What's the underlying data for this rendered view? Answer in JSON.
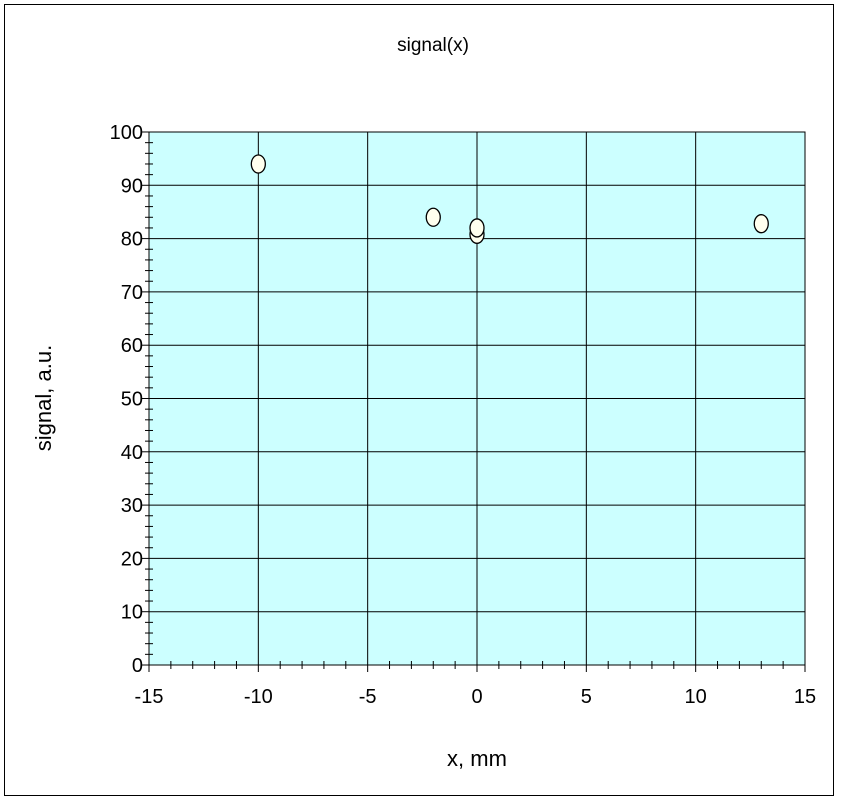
{
  "chart_data": {
    "type": "scatter",
    "title": "signal(x)",
    "xlabel": "x, mm",
    "ylabel": "signal, a.u.",
    "xlim": [
      -15,
      15
    ],
    "ylim": [
      0,
      100
    ],
    "x_major_ticks": [
      -15,
      -10,
      -5,
      0,
      5,
      10,
      15
    ],
    "y_major_ticks": [
      0,
      10,
      20,
      30,
      40,
      50,
      60,
      70,
      80,
      90,
      100
    ],
    "grid": true,
    "colors": {
      "plot_background": "#ccffff",
      "marker_fill": "#ffffee",
      "marker_edge": "#000000",
      "grid": "#000000"
    },
    "series": [
      {
        "marker": "circle",
        "x": [
          -10,
          -2,
          0,
          0,
          13
        ],
        "y": [
          94,
          84,
          80.8,
          82,
          82.8
        ]
      }
    ]
  }
}
